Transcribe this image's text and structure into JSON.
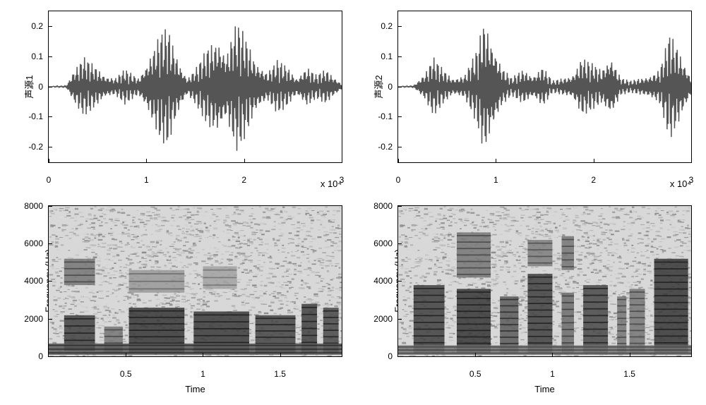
{
  "layout": {
    "rows": 2,
    "cols": 2,
    "background_color": "#ffffff",
    "font_family": "Arial",
    "tick_fontsize": 12,
    "label_fontsize": 13
  },
  "panels": {
    "top_left": {
      "type": "line",
      "ylabel": "声源1",
      "xlim": [
        0,
        30000
      ],
      "ylim": [
        -0.25,
        0.25
      ],
      "yticks": [
        -0.2,
        -0.1,
        0,
        0.1,
        0.2
      ],
      "xticks": [
        0,
        10000,
        20000,
        30000
      ],
      "xtick_labels": [
        "0",
        "1",
        "2",
        "3"
      ],
      "x_exponent": "x 10⁴",
      "line_color": "#555555",
      "line_width": 0.6,
      "envelope_peaks": [
        [
          0,
          0
        ],
        [
          1800,
          0.005
        ],
        [
          2600,
          0.06
        ],
        [
          3600,
          0.1
        ],
        [
          4800,
          0.07
        ],
        [
          5800,
          0.04
        ],
        [
          6800,
          0.03
        ],
        [
          7800,
          0.06
        ],
        [
          9200,
          0.03
        ],
        [
          10400,
          0.11
        ],
        [
          11400,
          0.18
        ],
        [
          12200,
          0.2
        ],
        [
          13200,
          0.1
        ],
        [
          14200,
          0.03
        ],
        [
          15200,
          0.07
        ],
        [
          16400,
          0.14
        ],
        [
          17400,
          0.17
        ],
        [
          18200,
          0.12
        ],
        [
          19200,
          0.22
        ],
        [
          20000,
          0.18
        ],
        [
          21200,
          0.09
        ],
        [
          22400,
          0.05
        ],
        [
          23400,
          0.09
        ],
        [
          24400,
          0.07
        ],
        [
          25400,
          0.03
        ],
        [
          26400,
          0.07
        ],
        [
          27400,
          0.04
        ],
        [
          28400,
          0.06
        ],
        [
          29400,
          0.03
        ],
        [
          30000,
          0.01
        ]
      ]
    },
    "top_right": {
      "type": "line",
      "ylabel": "声源2",
      "xlim": [
        0,
        30000
      ],
      "ylim": [
        -0.25,
        0.25
      ],
      "yticks": [
        -0.2,
        -0.1,
        0,
        0.1,
        0.2
      ],
      "xticks": [
        0,
        10000,
        20000,
        30000
      ],
      "xtick_labels": [
        "0",
        "1",
        "2",
        "3"
      ],
      "x_exponent": "x 10⁴",
      "line_color": "#555555",
      "line_width": 0.6,
      "envelope_peaks": [
        [
          0,
          0
        ],
        [
          1600,
          0.005
        ],
        [
          2800,
          0.05
        ],
        [
          3600,
          0.1
        ],
        [
          4600,
          0.06
        ],
        [
          5600,
          0.03
        ],
        [
          6800,
          0.04
        ],
        [
          8000,
          0.12
        ],
        [
          8800,
          0.23
        ],
        [
          9600,
          0.17
        ],
        [
          10600,
          0.07
        ],
        [
          11600,
          0.03
        ],
        [
          12800,
          0.06
        ],
        [
          13800,
          0.04
        ],
        [
          14800,
          0.07
        ],
        [
          15800,
          0.02
        ],
        [
          16800,
          0.03
        ],
        [
          17800,
          0.04
        ],
        [
          18800,
          0.1
        ],
        [
          19800,
          0.08
        ],
        [
          20800,
          0.06
        ],
        [
          21800,
          0.11
        ],
        [
          22800,
          0.03
        ],
        [
          23800,
          0.02
        ],
        [
          24800,
          0.03
        ],
        [
          25800,
          0.04
        ],
        [
          26800,
          0.06
        ],
        [
          27800,
          0.18
        ],
        [
          28600,
          0.14
        ],
        [
          29400,
          0.08
        ],
        [
          30000,
          0.03
        ]
      ]
    },
    "bottom_left": {
      "type": "spectrogram",
      "ylabel": "Frequency (Hz)",
      "xlabel": "Time",
      "xlim": [
        0,
        1.9
      ],
      "ylim": [
        0,
        8000
      ],
      "yticks": [
        0,
        2000,
        4000,
        6000,
        8000
      ],
      "xticks": [
        0.5,
        1,
        1.5
      ],
      "colormap_low": "#d8d8d8",
      "colormap_high": "#1a1a1a",
      "bands": [
        {
          "t0": 0.1,
          "t1": 0.3,
          "f0": 300,
          "f1": 2200,
          "intensity": 0.85
        },
        {
          "t0": 0.1,
          "t1": 0.3,
          "f0": 3800,
          "f1": 5200,
          "intensity": 0.55
        },
        {
          "t0": 0.36,
          "t1": 0.48,
          "f0": 200,
          "f1": 1600,
          "intensity": 0.55
        },
        {
          "t0": 0.52,
          "t1": 0.88,
          "f0": 200,
          "f1": 2600,
          "intensity": 0.9
        },
        {
          "t0": 0.52,
          "t1": 0.88,
          "f0": 3400,
          "f1": 4600,
          "intensity": 0.35
        },
        {
          "t0": 0.94,
          "t1": 1.3,
          "f0": 200,
          "f1": 2400,
          "intensity": 0.88
        },
        {
          "t0": 1.0,
          "t1": 1.22,
          "f0": 3600,
          "f1": 4800,
          "intensity": 0.3
        },
        {
          "t0": 1.34,
          "t1": 1.6,
          "f0": 200,
          "f1": 2200,
          "intensity": 0.82
        },
        {
          "t0": 1.64,
          "t1": 1.74,
          "f0": 200,
          "f1": 2800,
          "intensity": 0.85
        },
        {
          "t0": 1.78,
          "t1": 1.88,
          "f0": 200,
          "f1": 2600,
          "intensity": 0.8
        },
        {
          "t0": 0.0,
          "t1": 1.9,
          "f0": 100,
          "f1": 700,
          "intensity": 0.7
        }
      ]
    },
    "bottom_right": {
      "type": "spectrogram",
      "ylabel": "Frequency (Hz)",
      "xlabel": "Time",
      "xlim": [
        0,
        1.9
      ],
      "ylim": [
        0,
        8000
      ],
      "yticks": [
        0,
        2000,
        4000,
        6000,
        8000
      ],
      "xticks": [
        0.5,
        1,
        1.5
      ],
      "colormap_low": "#d8d8d8",
      "colormap_high": "#1a1a1a",
      "bands": [
        {
          "t0": 0.1,
          "t1": 0.3,
          "f0": 200,
          "f1": 3800,
          "intensity": 0.85
        },
        {
          "t0": 0.38,
          "t1": 0.6,
          "f0": 200,
          "f1": 3600,
          "intensity": 0.9
        },
        {
          "t0": 0.38,
          "t1": 0.6,
          "f0": 4200,
          "f1": 6600,
          "intensity": 0.55
        },
        {
          "t0": 0.66,
          "t1": 0.78,
          "f0": 200,
          "f1": 3200,
          "intensity": 0.7
        },
        {
          "t0": 0.84,
          "t1": 1.0,
          "f0": 200,
          "f1": 4400,
          "intensity": 0.85
        },
        {
          "t0": 0.84,
          "t1": 1.0,
          "f0": 4800,
          "f1": 6200,
          "intensity": 0.5
        },
        {
          "t0": 1.06,
          "t1": 1.14,
          "f0": 200,
          "f1": 3400,
          "intensity": 0.6
        },
        {
          "t0": 1.06,
          "t1": 1.14,
          "f0": 4600,
          "f1": 6400,
          "intensity": 0.55
        },
        {
          "t0": 1.2,
          "t1": 1.36,
          "f0": 200,
          "f1": 3800,
          "intensity": 0.8
        },
        {
          "t0": 1.42,
          "t1": 1.48,
          "f0": 200,
          "f1": 3200,
          "intensity": 0.55
        },
        {
          "t0": 1.5,
          "t1": 1.6,
          "f0": 200,
          "f1": 3600,
          "intensity": 0.55
        },
        {
          "t0": 1.66,
          "t1": 1.88,
          "f0": 200,
          "f1": 5200,
          "intensity": 0.9
        },
        {
          "t0": 0.0,
          "t1": 1.9,
          "f0": 100,
          "f1": 600,
          "intensity": 0.55
        }
      ]
    }
  }
}
